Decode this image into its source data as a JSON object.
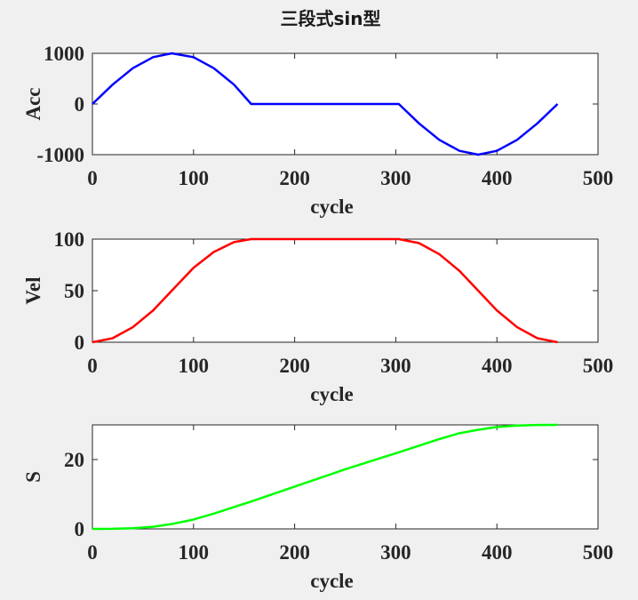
{
  "figure_title": "三段式sin型",
  "chart_data": [
    {
      "type": "line",
      "series": [
        {
          "color": "#0000ff",
          "function": "acceleration"
        }
      ],
      "xlabel": "cycle",
      "ylabel": "Acc",
      "xlim": [
        0,
        500
      ],
      "ylim": [
        -1000,
        1000
      ],
      "xticks": [
        0,
        100,
        200,
        300,
        400,
        500
      ],
      "yticks": [
        -1000,
        0,
        1000
      ],
      "xtick_labels": [
        "0",
        "100",
        "200",
        "300",
        "400",
        "500"
      ],
      "ytick_labels": [
        "-1000",
        "0",
        "1000"
      ],
      "grid": false,
      "segments": [
        {
          "x": [
            0,
            157
          ],
          "shape": "sine half-wave",
          "peak": 1000,
          "peak_at": 78.5
        },
        {
          "x": [
            157,
            303
          ],
          "shape": "flat",
          "value": 0
        },
        {
          "x": [
            303,
            460
          ],
          "shape": "sine half-wave",
          "peak": -1000,
          "peak_at": 381.5
        }
      ],
      "points": [
        [
          0,
          0
        ],
        [
          20,
          383
        ],
        [
          40,
          707
        ],
        [
          60,
          924
        ],
        [
          78.5,
          1000
        ],
        [
          100,
          924
        ],
        [
          120,
          707
        ],
        [
          140,
          383
        ],
        [
          157,
          0
        ],
        [
          200,
          0
        ],
        [
          250,
          0
        ],
        [
          303,
          0
        ],
        [
          323,
          -383
        ],
        [
          343,
          -707
        ],
        [
          363,
          -924
        ],
        [
          381.5,
          -1000
        ],
        [
          400,
          -924
        ],
        [
          420,
          -707
        ],
        [
          440,
          -383
        ],
        [
          460,
          0
        ]
      ]
    },
    {
      "type": "line",
      "series": [
        {
          "color": "#ff0000",
          "function": "velocity"
        }
      ],
      "xlabel": "cycle",
      "ylabel": "Vel",
      "xlim": [
        0,
        500
      ],
      "ylim": [
        0,
        100
      ],
      "xticks": [
        0,
        100,
        200,
        300,
        400,
        500
      ],
      "yticks": [
        0,
        50,
        100
      ],
      "xtick_labels": [
        "0",
        "100",
        "200",
        "300",
        "400",
        "500"
      ],
      "ytick_labels": [
        "0",
        "50",
        "100"
      ],
      "grid": false,
      "points": [
        [
          0,
          0
        ],
        [
          20,
          3.9
        ],
        [
          40,
          14.6
        ],
        [
          60,
          30.8
        ],
        [
          78.5,
          50
        ],
        [
          100,
          72.2
        ],
        [
          120,
          87.5
        ],
        [
          140,
          97.1
        ],
        [
          157,
          100
        ],
        [
          200,
          100
        ],
        [
          250,
          100
        ],
        [
          303,
          100
        ],
        [
          323,
          96.1
        ],
        [
          343,
          85.4
        ],
        [
          363,
          69.2
        ],
        [
          381.5,
          50
        ],
        [
          400,
          30.8
        ],
        [
          420,
          14.6
        ],
        [
          440,
          3.9
        ],
        [
          460,
          0
        ]
      ]
    },
    {
      "type": "line",
      "series": [
        {
          "color": "#00ff00",
          "function": "displacement"
        }
      ],
      "xlabel": "cycle",
      "ylabel": "S",
      "xlim": [
        0,
        500
      ],
      "ylim": [
        0,
        30
      ],
      "xticks": [
        0,
        100,
        200,
        300,
        400,
        500
      ],
      "yticks": [
        0,
        20
      ],
      "xtick_labels": [
        "0",
        "100",
        "200",
        "300",
        "400",
        "500"
      ],
      "ytick_labels": [
        "0",
        "20"
      ],
      "grid": false,
      "points": [
        [
          0,
          0
        ],
        [
          20,
          0.02
        ],
        [
          40,
          0.2
        ],
        [
          60,
          0.6
        ],
        [
          78.5,
          1.4
        ],
        [
          100,
          2.7
        ],
        [
          120,
          4.4
        ],
        [
          140,
          6.3
        ],
        [
          157,
          7.9
        ],
        [
          200,
          12.2
        ],
        [
          250,
          17.2
        ],
        [
          303,
          22.1
        ],
        [
          323,
          24.0
        ],
        [
          343,
          25.9
        ],
        [
          363,
          27.6
        ],
        [
          381.5,
          28.6
        ],
        [
          400,
          29.4
        ],
        [
          420,
          29.8
        ],
        [
          440,
          29.98
        ],
        [
          460,
          30
        ]
      ]
    }
  ]
}
